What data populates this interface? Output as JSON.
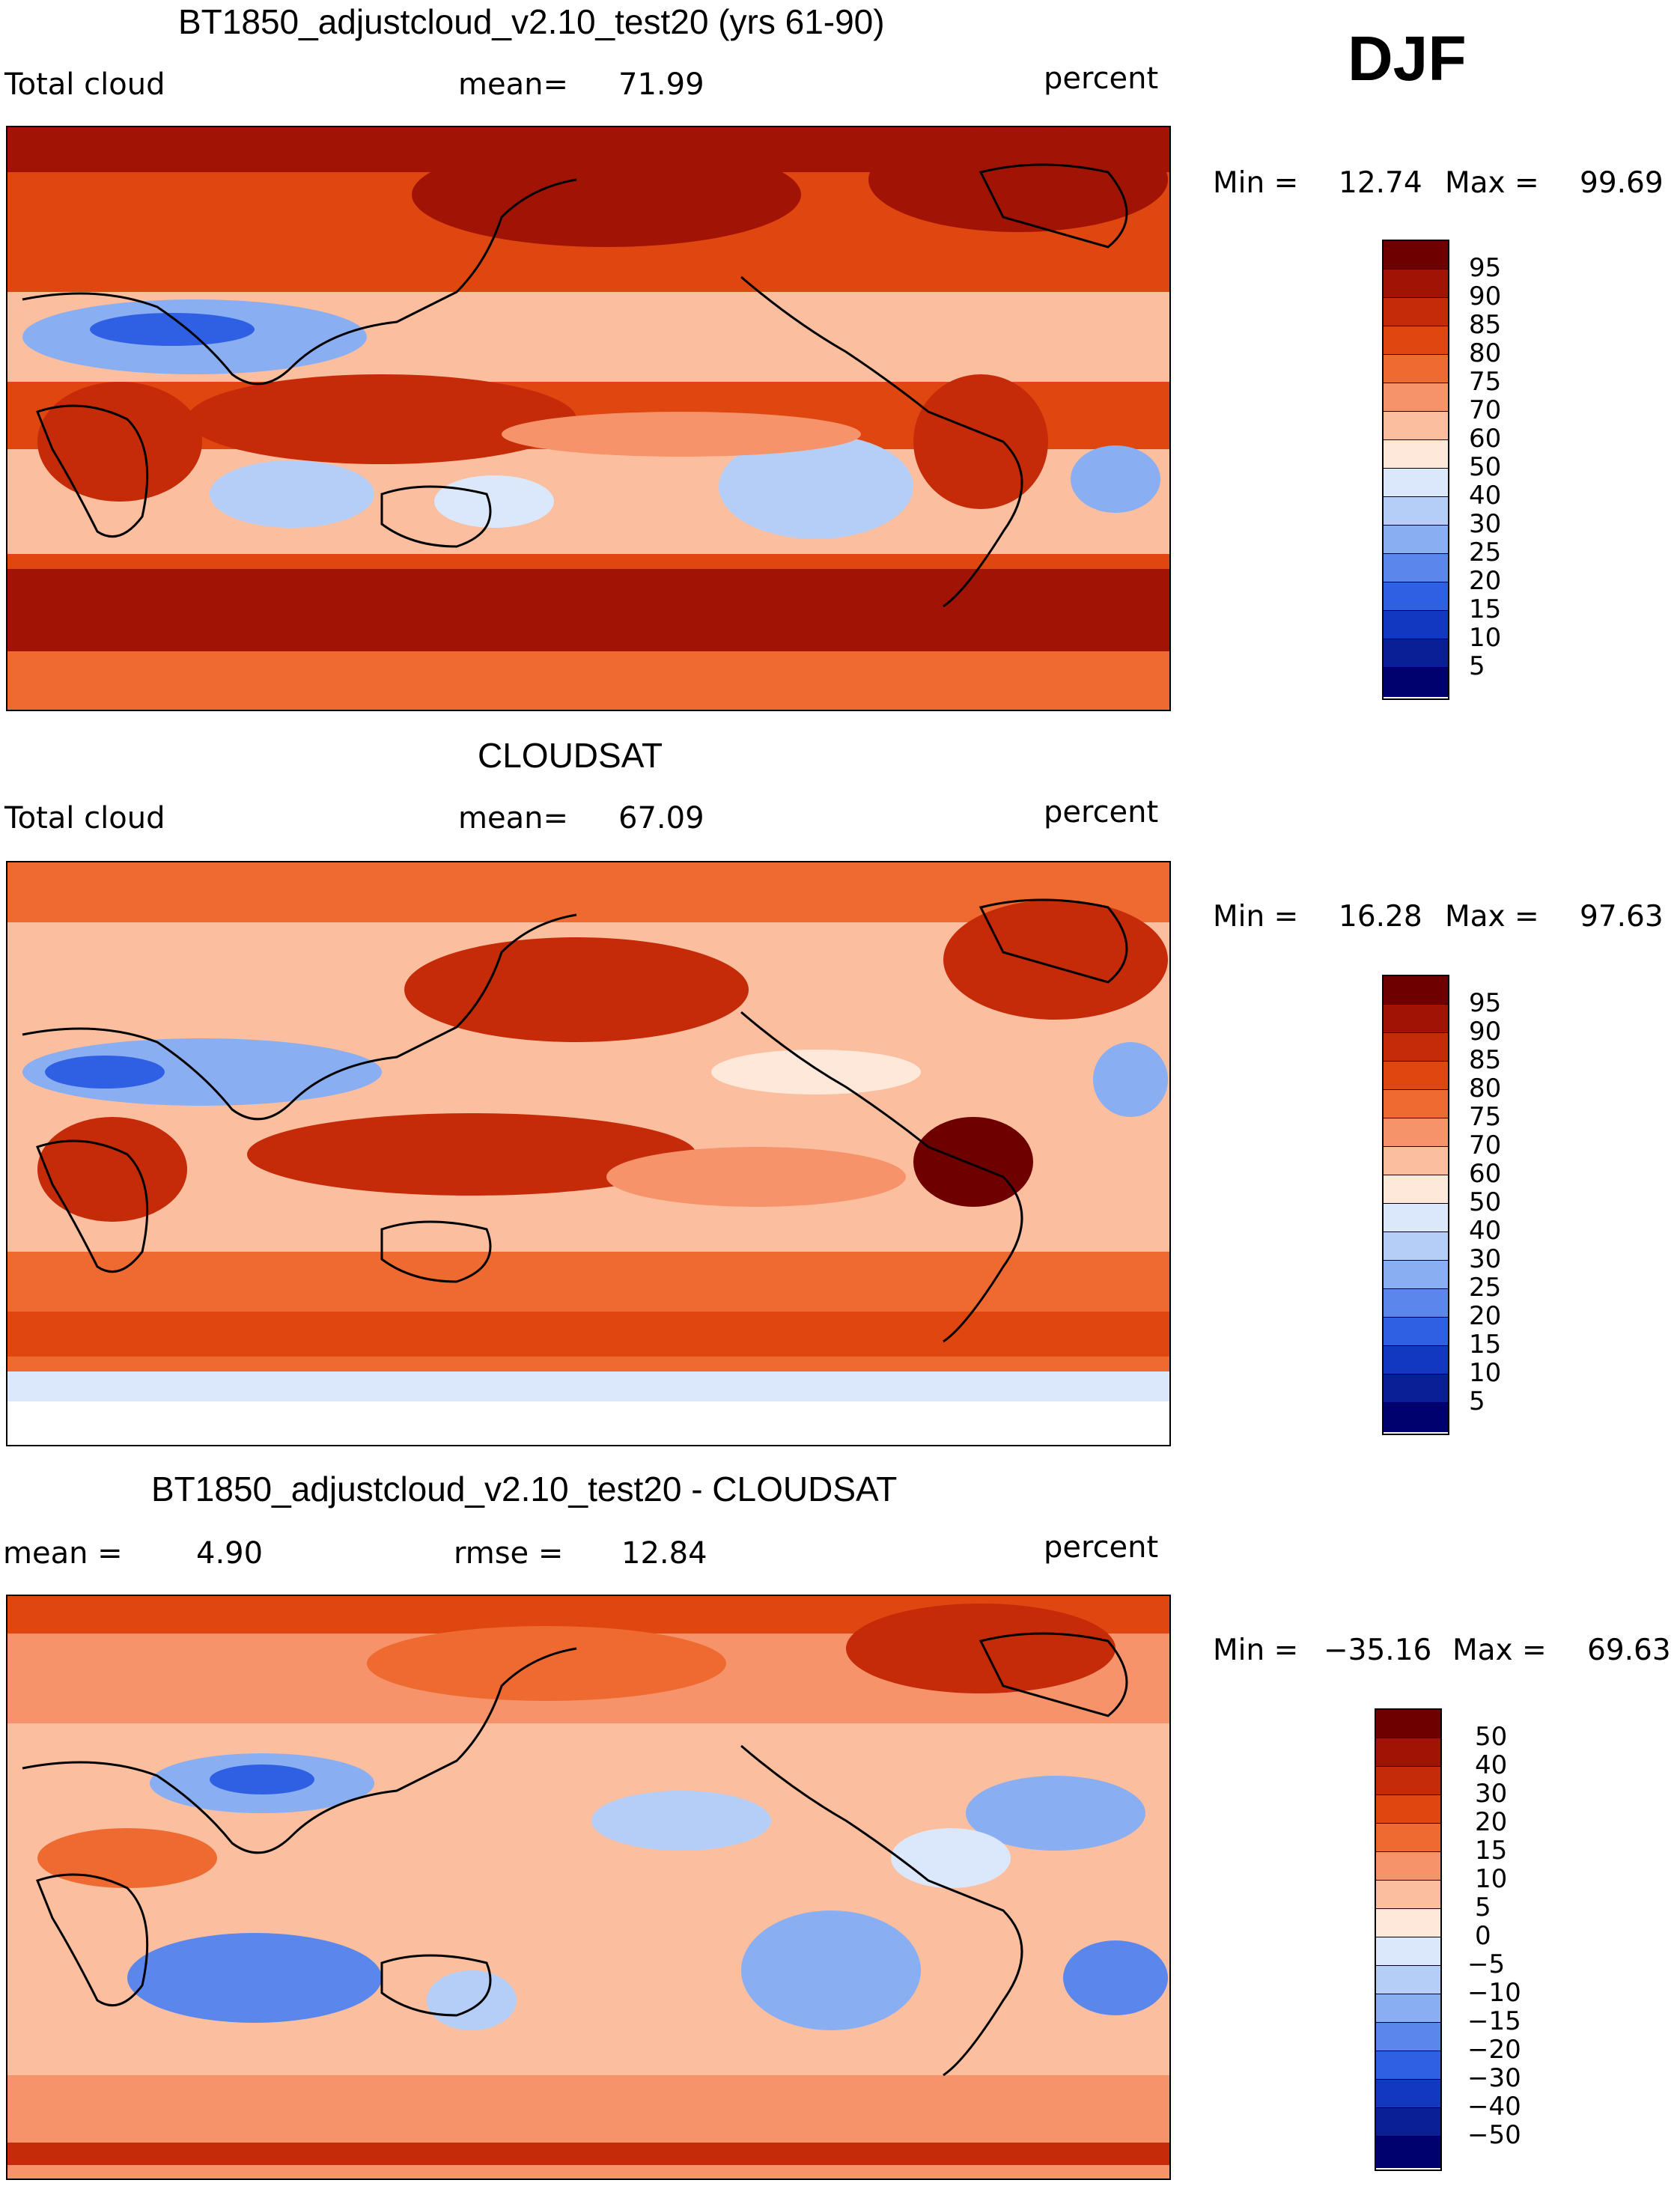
{
  "season": "DJF",
  "panels": [
    {
      "title": "BT1850_adjustcloud_v2.10_test20 (yrs 61-90)",
      "left_label": "Total cloud",
      "mid_label": "mean=",
      "mid_value": "71.99",
      "units": "percent",
      "min_label": "Min =",
      "min_value": "12.74",
      "max_label": "Max =",
      "max_value": "99.69",
      "colorbar_labels": [
        "95",
        "90",
        "85",
        "80",
        "75",
        "70",
        "60",
        "50",
        "40",
        "30",
        "25",
        "20",
        "15",
        "10",
        "5"
      ]
    },
    {
      "title": "CLOUDSAT",
      "left_label": "Total cloud",
      "mid_label": "mean=",
      "mid_value": "67.09",
      "units": "percent",
      "min_label": "Min =",
      "min_value": "16.28",
      "max_label": "Max =",
      "max_value": "97.63",
      "colorbar_labels": [
        "95",
        "90",
        "85",
        "80",
        "75",
        "70",
        "60",
        "50",
        "40",
        "30",
        "25",
        "20",
        "15",
        "10",
        "5"
      ]
    },
    {
      "title": "BT1850_adjustcloud_v2.10_test20 - CLOUDSAT",
      "left_label": "mean =",
      "left_value": "4.90",
      "mid_label": "rmse =",
      "mid_value": "12.84",
      "units": "percent",
      "min_label": "Min =",
      "min_value": "−35.16",
      "max_label": "Max =",
      "max_value": "69.63",
      "colorbar_labels": [
        "50",
        "40",
        "30",
        "20",
        "15",
        "10",
        "5",
        "0",
        "−5",
        "−10",
        "−15",
        "−20",
        "−30",
        "−40",
        "−50"
      ]
    }
  ],
  "colors": {
    "scale": [
      "#6e0000",
      "#a11405",
      "#c52a09",
      "#e0460f",
      "#ee6a30",
      "#f6936a",
      "#fbbfa0",
      "#fde8da",
      "#dbe8fb",
      "#b5cef7",
      "#8aaef2",
      "#5b87ec",
      "#2f60e4",
      "#1238c2",
      "#0a1f96",
      "#00006e"
    ],
    "coast": "#000000"
  }
}
